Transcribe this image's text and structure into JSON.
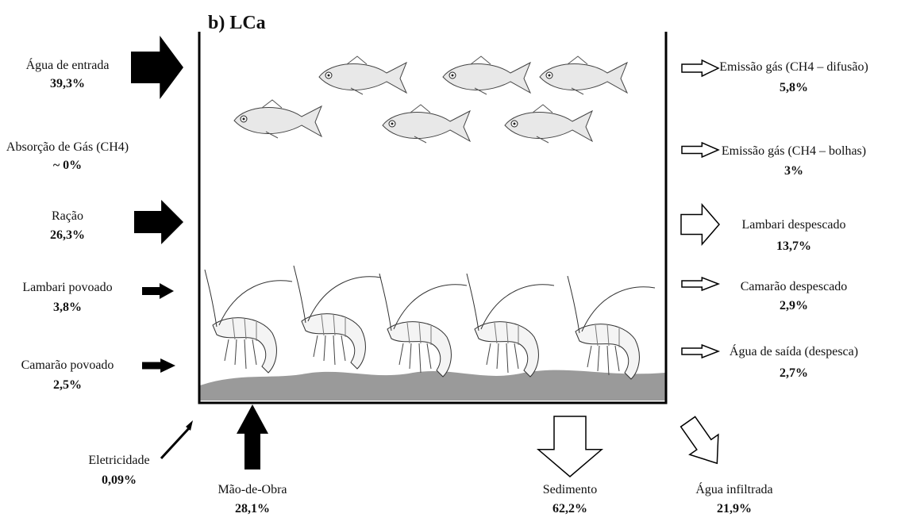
{
  "title": "b) LCa",
  "inputs": [
    {
      "label": "Água de entrada",
      "value": "39,3%"
    },
    {
      "label": "Absorção de Gás (CH4)",
      "value": "~ 0%"
    },
    {
      "label": "Ração",
      "value": "26,3%"
    },
    {
      "label": "Lambari povoado",
      "value": "3,8%"
    },
    {
      "label": "Camarão povoado",
      "value": "2,5%"
    },
    {
      "label": "Eletricidade",
      "value": "0,09%"
    },
    {
      "label": "Mão-de-Obra",
      "value": "28,1%"
    }
  ],
  "outputs": [
    {
      "label": "Emissão gás (CH4 – difusão)",
      "value": "5,8%"
    },
    {
      "label": "Emissão gás (CH4 – bolhas)",
      "value": "3%"
    },
    {
      "label": "Lambari despescado",
      "value": "13,7%"
    },
    {
      "label": "Camarão despescado",
      "value": "2,9%"
    },
    {
      "label": "Água de saída (despesca)",
      "value": "2,7%"
    },
    {
      "label": "Sedimento",
      "value": "62,2%"
    },
    {
      "label": "Água infiltrada",
      "value": "21,9%"
    }
  ]
}
